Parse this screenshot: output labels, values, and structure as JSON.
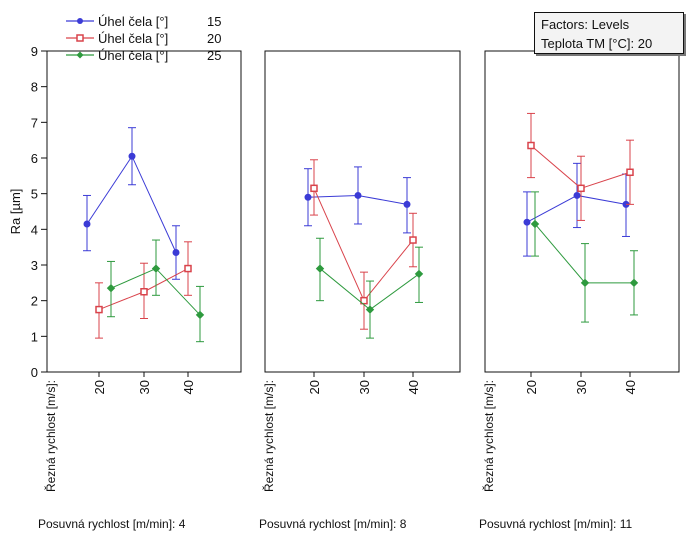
{
  "chart_data": {
    "type": "line",
    "ylabel": "Ra [µm]",
    "ylim": [
      0,
      9
    ],
    "yticks": [
      0,
      1,
      2,
      3,
      4,
      5,
      6,
      7,
      8,
      9
    ],
    "x_label": "Řezná rychlost [m/s]:",
    "categories": [
      "20",
      "30",
      "40"
    ],
    "legend_placement": "top-left",
    "legend": {
      "entries": [
        {
          "label": "Úhel čela [°]",
          "value": "15"
        },
        {
          "label": "Úhel čela [°]",
          "value": "20"
        },
        {
          "label": "Úhel čela [°]",
          "value": "25"
        }
      ]
    },
    "factors_box": {
      "line1": "Factors: Levels",
      "line2": "Teplota TM [°C]: 20"
    },
    "series_colors": [
      "#3b3bd6",
      "#d9434b",
      "#2e9a3e"
    ],
    "series_markers": [
      "circle",
      "square",
      "diamond"
    ],
    "panels": [
      {
        "label": "Posuvná rychlost [m/min]: 4",
        "series": [
          {
            "values": [
              4.15,
              6.05,
              3.35
            ],
            "lower": [
              3.4,
              5.25,
              2.6
            ],
            "upper": [
              4.95,
              6.85,
              4.1
            ]
          },
          {
            "values": [
              1.75,
              2.25,
              2.9
            ],
            "lower": [
              0.95,
              1.5,
              2.15
            ],
            "upper": [
              2.5,
              3.05,
              3.65
            ]
          },
          {
            "values": [
              2.35,
              2.9,
              1.6
            ],
            "lower": [
              1.55,
              2.15,
              0.85
            ],
            "upper": [
              3.1,
              3.7,
              2.4
            ]
          }
        ]
      },
      {
        "label": "Posuvná rychlost [m/min]: 8",
        "series": [
          {
            "values": [
              4.9,
              4.95,
              4.7
            ],
            "lower": [
              4.1,
              4.15,
              3.9
            ],
            "upper": [
              5.7,
              5.75,
              5.45
            ]
          },
          {
            "values": [
              5.15,
              2.0,
              3.7
            ],
            "lower": [
              4.4,
              1.2,
              2.95
            ],
            "upper": [
              5.95,
              2.8,
              4.45
            ]
          },
          {
            "values": [
              2.9,
              1.75,
              2.75
            ],
            "lower": [
              2.0,
              0.95,
              1.95
            ],
            "upper": [
              3.75,
              2.55,
              3.5
            ]
          }
        ]
      },
      {
        "label": "Posuvná rychlost [m/min]: 11",
        "series": [
          {
            "values": [
              4.2,
              4.95,
              4.7
            ],
            "lower": [
              3.25,
              4.05,
              3.8
            ],
            "upper": [
              5.05,
              5.85,
              5.55
            ]
          },
          {
            "values": [
              6.35,
              5.15,
              5.6
            ],
            "lower": [
              5.45,
              4.25,
              4.7
            ],
            "upper": [
              7.25,
              6.05,
              6.5
            ]
          },
          {
            "values": [
              4.15,
              2.5,
              2.5
            ],
            "lower": [
              3.25,
              1.4,
              1.6
            ],
            "upper": [
              5.05,
              3.6,
              3.4
            ]
          }
        ]
      }
    ]
  }
}
